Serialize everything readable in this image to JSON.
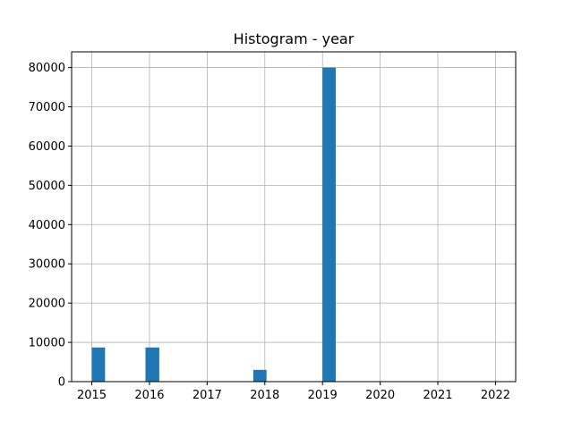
{
  "chart_data": {
    "type": "bar",
    "title": "Histogram - year",
    "xlabel": "",
    "ylabel": "",
    "xlim": [
      2014.65,
      2022.35
    ],
    "ylim": [
      0,
      84000
    ],
    "x_ticks": [
      2015,
      2016,
      2017,
      2018,
      2019,
      2020,
      2021,
      2022
    ],
    "x_tick_labels": [
      "2015",
      "2016",
      "2017",
      "2018",
      "2019",
      "2020",
      "2021",
      "2022"
    ],
    "y_ticks": [
      0,
      10000,
      20000,
      30000,
      40000,
      50000,
      60000,
      70000,
      80000
    ],
    "y_tick_labels": [
      "0",
      "10000",
      "20000",
      "30000",
      "40000",
      "50000",
      "60000",
      "70000",
      "80000"
    ],
    "grid": true,
    "bar_color": "#1f77b4",
    "bins": [
      {
        "x0": 2015.0,
        "x1": 2015.23,
        "count": 8700
      },
      {
        "x0": 2015.93,
        "x1": 2016.17,
        "count": 8700
      },
      {
        "x0": 2017.8,
        "x1": 2018.03,
        "count": 3000
      },
      {
        "x0": 2019.0,
        "x1": 2019.23,
        "count": 80000
      }
    ]
  }
}
